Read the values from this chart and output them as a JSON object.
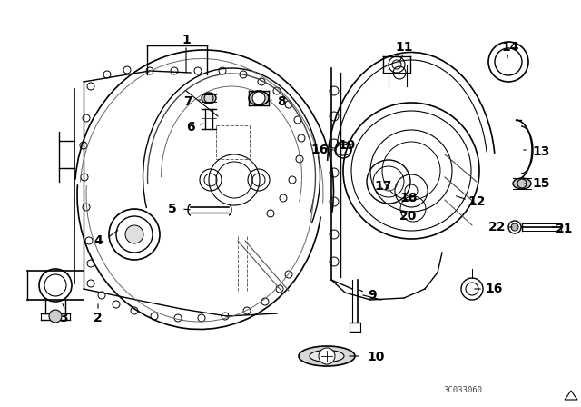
{
  "bg_color": "#ffffff",
  "line_color": "#000000",
  "watermark": "3C033060",
  "fig_width": 6.4,
  "fig_height": 4.48,
  "dpi": 100
}
